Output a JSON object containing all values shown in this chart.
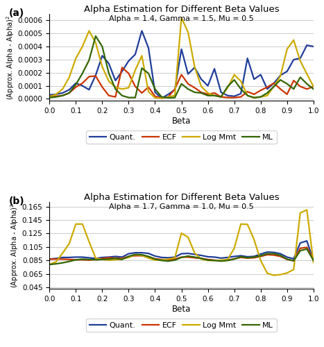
{
  "title": "Alpha Estimation for Different Beta Values",
  "xlabel": "Beta",
  "ylabel": "(Approx. Alpha - Alpha)^2",
  "subplot_a": {
    "subtitle": "Alpha = 1.4, Gamma = 1.5, Mu = 0.5",
    "label": "(a)",
    "ylim": [
      -1.5e-05,
      0.00065
    ],
    "yticks": [
      0,
      0.0001,
      0.0002,
      0.0003,
      0.0004,
      0.0005,
      0.0006
    ],
    "xticks": [
      0,
      0.1,
      0.2,
      0.3,
      0.4,
      0.5,
      0.6,
      0.7,
      0.8,
      0.9,
      1.0
    ],
    "quant": [
      3e-05,
      3.5e-05,
      4.5e-05,
      7e-05,
      0.00012,
      0.0001,
      7e-05,
      0.00018,
      0.00033,
      0.00027,
      0.00014,
      0.00021,
      0.00029,
      0.00034,
      0.00052,
      0.00039,
      5e-05,
      5e-06,
      3.5e-05,
      7e-05,
      0.00038,
      0.00019,
      0.00024,
      0.00015,
      0.0001,
      0.00023,
      5e-05,
      2.5e-05,
      2e-05,
      4e-05,
      0.00031,
      0.00015,
      0.000185,
      7.5e-05,
      0.00012,
      0.00018,
      0.00021,
      0.0003,
      0.00031,
      0.00041,
      0.0004
    ],
    "ecf": [
      2e-05,
      2e-05,
      2.5e-05,
      4.5e-05,
      9e-05,
      0.00012,
      0.00017,
      0.000175,
      9e-05,
      2.5e-05,
      1.5e-05,
      0.00024,
      0.000195,
      9.5e-05,
      4.5e-05,
      9e-05,
      2e-05,
      5e-06,
      1.5e-05,
      7.5e-05,
      0.000185,
      0.000115,
      8.5e-05,
      5e-05,
      3.5e-05,
      4.5e-05,
      1.5e-05,
      1e-05,
      1e-05,
      1.5e-05,
      5.5e-05,
      3.5e-05,
      6.5e-05,
      9e-05,
      0.00012,
      7.5e-05,
      3.5e-05,
      0.00014,
      9.5e-05,
      7.5e-05,
      9.5e-05
    ],
    "logmmt": [
      1.5e-05,
      3.5e-05,
      7.5e-05,
      0.000165,
      0.00031,
      0.0004,
      0.00052,
      0.00043,
      0.000245,
      0.000135,
      9e-05,
      7.5e-05,
      8.5e-05,
      0.00022,
      0.00033,
      5.5e-05,
      8e-06,
      5e-06,
      1.5e-05,
      2.5e-05,
      0.00062,
      0.00051,
      0.000245,
      9.5e-05,
      4.5e-05,
      2.5e-05,
      1.5e-05,
      8.5e-05,
      0.000185,
      0.000135,
      2.5e-05,
      8e-06,
      1.5e-05,
      2.5e-05,
      9.5e-05,
      0.000175,
      0.00038,
      0.00045,
      0.00029,
      0.00019,
      9.5e-05
    ],
    "ml": [
      1e-05,
      1.5e-05,
      2.5e-05,
      4.5e-05,
      0.00011,
      0.000195,
      0.000295,
      0.00048,
      0.0004,
      0.000195,
      7.5e-05,
      2.5e-05,
      1e-05,
      1e-05,
      0.000235,
      0.000195,
      7.5e-05,
      1.5e-05,
      8e-06,
      1e-05,
      0.000115,
      7.5e-05,
      5e-05,
      4.5e-05,
      2.5e-05,
      2.5e-05,
      1.5e-05,
      9.5e-05,
      0.000145,
      7.5e-05,
      2.5e-05,
      1e-05,
      1.5e-05,
      4.5e-05,
      9.5e-05,
      0.000145,
      0.000115,
      7.5e-05,
      0.000165,
      0.000115,
      7.5e-05
    ]
  },
  "subplot_b": {
    "subtitle": "Alpha = 1.7, Gamma = 1.0, Mu = 0.5",
    "label": "(b)",
    "ylim": [
      0.043,
      0.172
    ],
    "yticks": [
      0.045,
      0.065,
      0.085,
      0.105,
      0.125,
      0.145,
      0.165
    ],
    "xticks": [
      0,
      0.1,
      0.2,
      0.3,
      0.4,
      0.5,
      0.6,
      0.7,
      0.8,
      0.9,
      1.0
    ],
    "quant": [
      0.087,
      0.088,
      0.0895,
      0.0895,
      0.09,
      0.09,
      0.089,
      0.088,
      0.0895,
      0.09,
      0.091,
      0.09,
      0.095,
      0.0965,
      0.0965,
      0.0955,
      0.0915,
      0.0895,
      0.089,
      0.09,
      0.095,
      0.0955,
      0.094,
      0.0925,
      0.0905,
      0.09,
      0.0885,
      0.0895,
      0.091,
      0.092,
      0.0905,
      0.091,
      0.0945,
      0.0975,
      0.097,
      0.095,
      0.09,
      0.0875,
      0.111,
      0.114,
      0.085
    ],
    "ecf": [
      0.087,
      0.087,
      0.087,
      0.0865,
      0.086,
      0.086,
      0.0855,
      0.0865,
      0.088,
      0.089,
      0.0885,
      0.088,
      0.091,
      0.092,
      0.092,
      0.0905,
      0.0875,
      0.0865,
      0.086,
      0.087,
      0.09,
      0.09,
      0.089,
      0.088,
      0.0865,
      0.0855,
      0.0845,
      0.0855,
      0.0875,
      0.0895,
      0.0885,
      0.089,
      0.091,
      0.0935,
      0.093,
      0.091,
      0.0865,
      0.0845,
      0.103,
      0.1045,
      0.0865
    ],
    "logmmt": [
      0.079,
      0.083,
      0.096,
      0.11,
      0.139,
      0.139,
      0.113,
      0.0885,
      0.0865,
      0.0855,
      0.086,
      0.087,
      0.0895,
      0.0935,
      0.0925,
      0.0885,
      0.0855,
      0.086,
      0.087,
      0.089,
      0.1255,
      0.1195,
      0.096,
      0.087,
      0.085,
      0.085,
      0.0855,
      0.0865,
      0.103,
      0.139,
      0.1385,
      0.116,
      0.085,
      0.066,
      0.063,
      0.064,
      0.0665,
      0.0715,
      0.1555,
      0.16,
      0.082
    ],
    "ml": [
      0.079,
      0.08,
      0.0815,
      0.0835,
      0.086,
      0.087,
      0.0865,
      0.086,
      0.0865,
      0.087,
      0.088,
      0.0865,
      0.091,
      0.094,
      0.0935,
      0.091,
      0.087,
      0.085,
      0.084,
      0.0855,
      0.0895,
      0.0915,
      0.09,
      0.088,
      0.0855,
      0.085,
      0.084,
      0.085,
      0.087,
      0.0905,
      0.089,
      0.09,
      0.092,
      0.095,
      0.095,
      0.0925,
      0.087,
      0.0845,
      0.0995,
      0.102,
      0.085
    ]
  },
  "colors": {
    "quant": "#1f3d99",
    "ecf": "#cc3300",
    "logmmt": "#ccaa00",
    "ml": "#336600"
  },
  "legend_labels": [
    "Quant.",
    "ECF",
    "Log Mmt",
    "ML"
  ]
}
